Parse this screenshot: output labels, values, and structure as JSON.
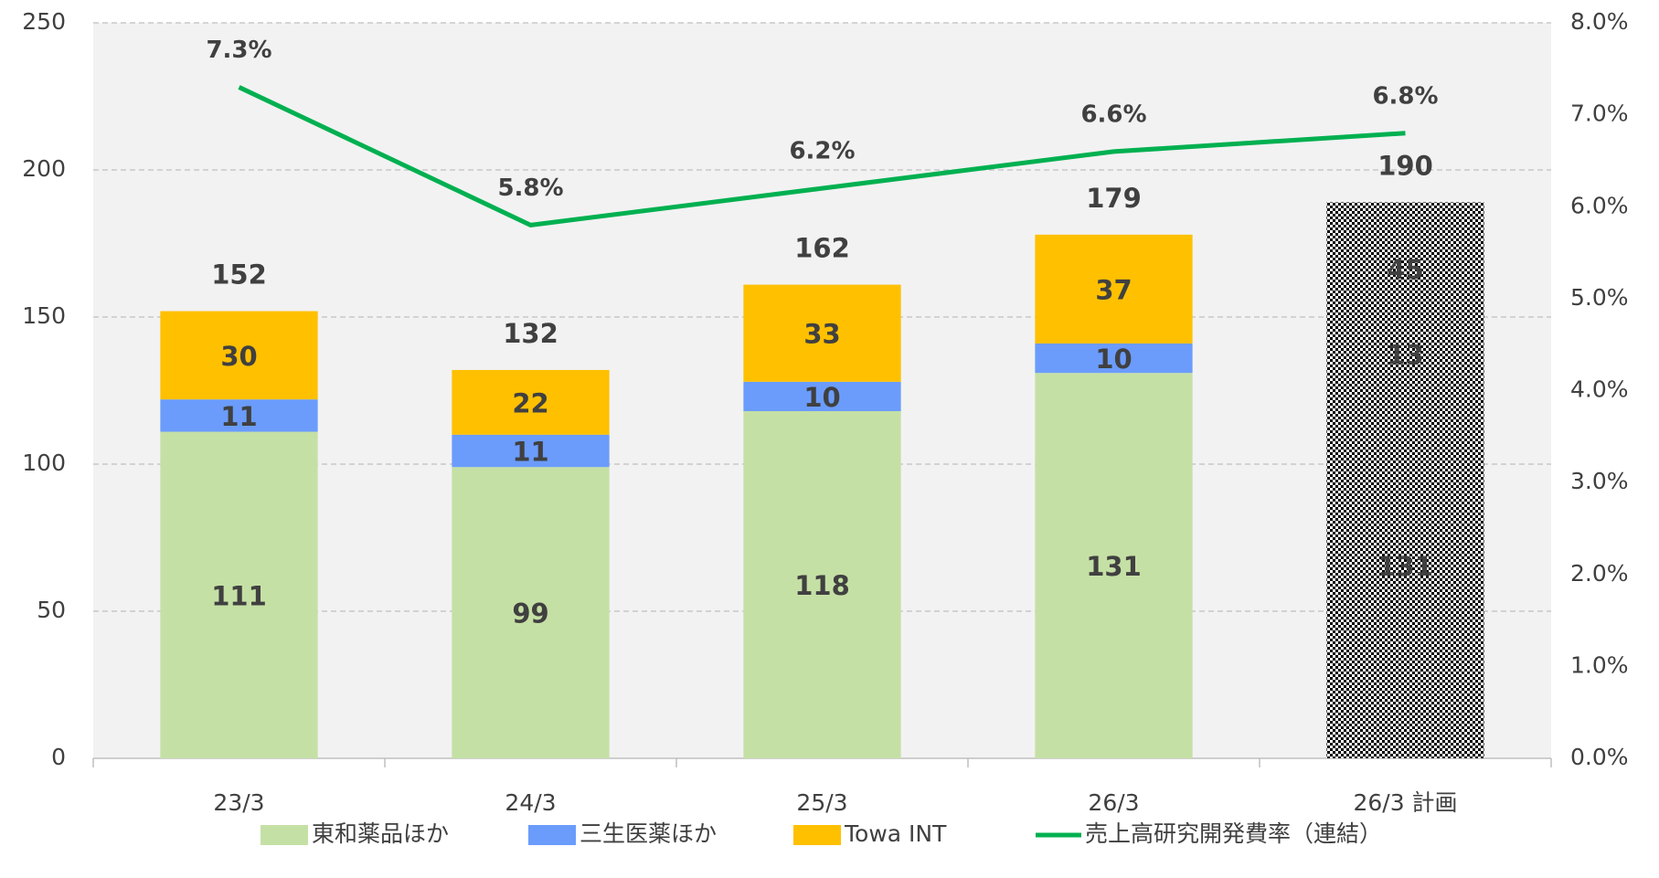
{
  "chart_data": {
    "type": "stacked_bar_line",
    "categories": [
      "23/3",
      "24/3",
      "25/3",
      "26/3",
      "26/3 計画"
    ],
    "series": [
      {
        "name": "東和薬品ほか",
        "color": "#c5e0a5",
        "values": [
          111,
          99,
          118,
          131,
          131
        ]
      },
      {
        "name": "三生医薬ほか",
        "color": "#6b9cfb",
        "values": [
          11,
          11,
          10,
          10,
          13
        ]
      },
      {
        "name": "Towa INT",
        "color": "#ffc000",
        "values": [
          30,
          22,
          33,
          37,
          45
        ]
      },
      {
        "name": "売上高研究開発費率（連結）",
        "color": "#00b050",
        "axis": "y2",
        "type": "line",
        "values": [
          7.3,
          5.8,
          6.2,
          6.6,
          6.8
        ],
        "value_labels": [
          "7.3%",
          "5.8%",
          "6.2%",
          "6.6%",
          "6.8%"
        ]
      }
    ],
    "totals": [
      152,
      132,
      162,
      179,
      190
    ],
    "patterned": [
      false,
      false,
      false,
      false,
      true
    ],
    "ylim": [
      0,
      250
    ],
    "yticks": [
      0,
      50,
      100,
      150,
      200,
      250
    ],
    "y2lim": [
      0,
      8
    ],
    "y2ticks": [
      {
        "value": 0,
        "label": "0.0%"
      },
      {
        "value": 1,
        "label": "1.0%"
      },
      {
        "value": 2,
        "label": "2.0%"
      },
      {
        "value": 3,
        "label": "3.0%"
      },
      {
        "value": 4,
        "label": "4.0%"
      },
      {
        "value": 5,
        "label": "5.0%"
      },
      {
        "value": 6,
        "label": "6.0%"
      },
      {
        "value": 7,
        "label": "7.0%"
      },
      {
        "value": 8,
        "label": "8.0%"
      }
    ],
    "grid": true,
    "legend": "bottom"
  }
}
